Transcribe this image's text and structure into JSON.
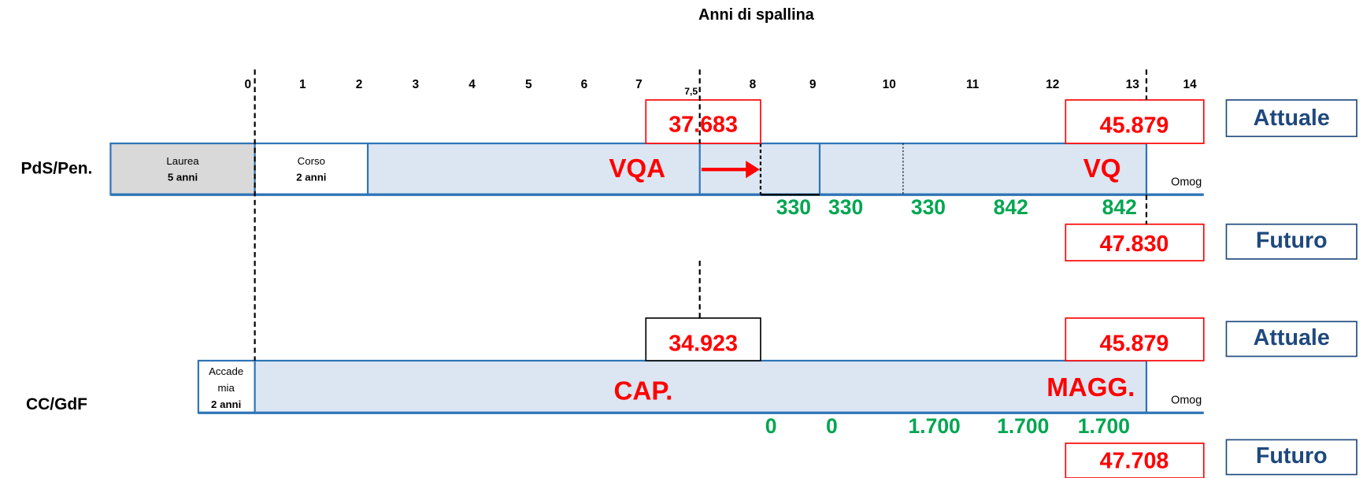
{
  "title": "Anni di spallina",
  "axis_ticks": [
    "0",
    "1",
    "2",
    "3",
    "4",
    "5",
    "6",
    "7",
    "7,5",
    "8",
    "9",
    "10",
    "11",
    "12",
    "13",
    "14"
  ],
  "rows": [
    {
      "label": "PdS/Pen.",
      "segments": [
        [
          "Laurea",
          "5 anni"
        ],
        [
          "Corso",
          "2 anni"
        ]
      ],
      "grades": [
        "VQA",
        "VQ"
      ],
      "omog": "Omog",
      "current_values": [
        "37.683",
        "45.879"
      ],
      "future_value": "47.830",
      "increments": [
        "330",
        "330",
        "330",
        "842",
        "842"
      ],
      "current_tag": "Attuale",
      "future_tag": "Futuro"
    },
    {
      "label": "CC/GdF",
      "segments": [
        [
          "Accade",
          "mia",
          "2 anni"
        ]
      ],
      "grades": [
        "CAP.",
        "MAGG."
      ],
      "omog": "Omog",
      "current_values": [
        "34.923",
        "45.879"
      ],
      "future_value": "47.708",
      "increments": [
        "0",
        "0",
        "1.700",
        "1.700",
        "1.700"
      ],
      "current_tag": "Attuale",
      "future_tag": "Futuro"
    }
  ]
}
